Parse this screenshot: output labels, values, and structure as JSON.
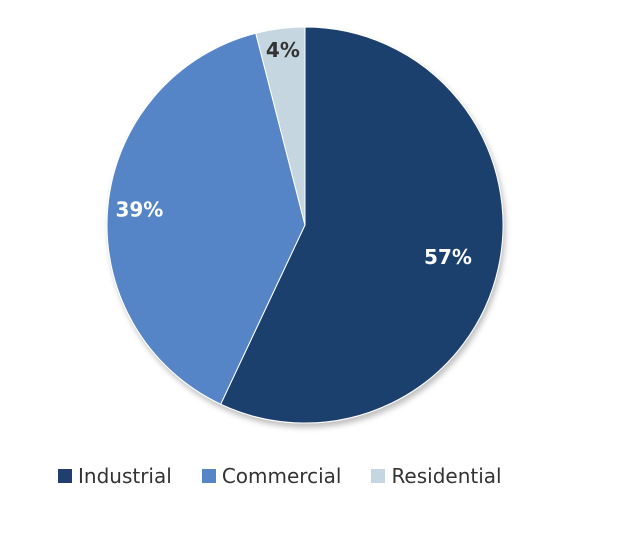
{
  "chart_data": {
    "type": "pie",
    "title": "",
    "categories": [
      "Industrial",
      "Commercial",
      "Residential"
    ],
    "values": [
      57,
      39,
      4
    ],
    "labels": [
      "57%",
      "39%",
      "4%"
    ],
    "colors": [
      "#1f3f6e",
      "#5585c6",
      "#c5d6e0"
    ],
    "label_colors": [
      "#ffffff",
      "#ffffff",
      "#333333"
    ],
    "start_angle_deg": 0,
    "direction": "clockwise",
    "legend_position": "bottom"
  }
}
